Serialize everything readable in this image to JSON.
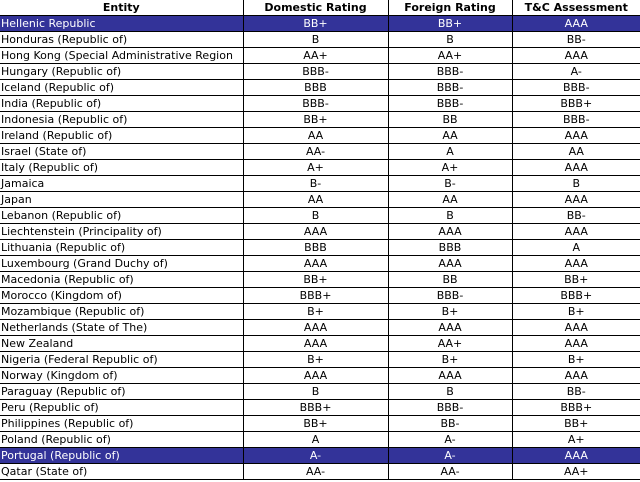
{
  "columns": {
    "entity": "Entity",
    "domestic": "Domestic Rating",
    "foreign": "Foreign Rating",
    "tc": "T&C Assessment"
  },
  "colors": {
    "selected_row_bg": "#333399",
    "selected_row_text": "#ffffff",
    "grid": "#000000"
  },
  "rows": [
    {
      "entity": "Hellenic Republic",
      "domestic": "BB+",
      "foreign": "BB+",
      "tc": "AAA",
      "selected": true
    },
    {
      "entity": "Honduras (Republic of)",
      "domestic": "B",
      "foreign": "B",
      "tc": "BB-"
    },
    {
      "entity": "Hong Kong (Special Administrative Region",
      "domestic": "AA+",
      "foreign": "AA+",
      "tc": "AAA"
    },
    {
      "entity": "Hungary (Republic of)",
      "domestic": "BBB-",
      "foreign": "BBB-",
      "tc": "A-"
    },
    {
      "entity": "Iceland (Republic of)",
      "domestic": "BBB",
      "foreign": "BBB-",
      "tc": "BBB-"
    },
    {
      "entity": "India (Republic of)",
      "domestic": "BBB-",
      "foreign": "BBB-",
      "tc": "BBB+"
    },
    {
      "entity": "Indonesia (Republic of)",
      "domestic": "BB+",
      "foreign": "BB",
      "tc": "BBB-"
    },
    {
      "entity": "Ireland (Republic of)",
      "domestic": "AA",
      "foreign": "AA",
      "tc": "AAA"
    },
    {
      "entity": "Israel (State of)",
      "domestic": "AA-",
      "foreign": "A",
      "tc": "AA"
    },
    {
      "entity": "Italy (Republic of)",
      "domestic": "A+",
      "foreign": "A+",
      "tc": "AAA"
    },
    {
      "entity": "Jamaica",
      "domestic": "B-",
      "foreign": "B-",
      "tc": "B"
    },
    {
      "entity": "Japan",
      "domestic": "AA",
      "foreign": "AA",
      "tc": "AAA"
    },
    {
      "entity": "Lebanon (Republic of)",
      "domestic": "B",
      "foreign": "B",
      "tc": "BB-"
    },
    {
      "entity": "Liechtenstein (Principality of)",
      "domestic": "AAA",
      "foreign": "AAA",
      "tc": "AAA"
    },
    {
      "entity": "Lithuania (Republic of)",
      "domestic": "BBB",
      "foreign": "BBB",
      "tc": "A"
    },
    {
      "entity": "Luxembourg (Grand Duchy of)",
      "domestic": "AAA",
      "foreign": "AAA",
      "tc": "AAA"
    },
    {
      "entity": "Macedonia (Republic of)",
      "domestic": "BB+",
      "foreign": "BB",
      "tc": "BB+"
    },
    {
      "entity": "Morocco (Kingdom of)",
      "domestic": "BBB+",
      "foreign": "BBB-",
      "tc": "BBB+"
    },
    {
      "entity": "Mozambique (Republic of)",
      "domestic": "B+",
      "foreign": "B+",
      "tc": "B+"
    },
    {
      "entity": "Netherlands (State of The)",
      "domestic": "AAA",
      "foreign": "AAA",
      "tc": "AAA"
    },
    {
      "entity": "New Zealand",
      "domestic": "AAA",
      "foreign": "AA+",
      "tc": "AAA"
    },
    {
      "entity": "Nigeria (Federal Republic of)",
      "domestic": "B+",
      "foreign": "B+",
      "tc": "B+"
    },
    {
      "entity": "Norway (Kingdom of)",
      "domestic": "AAA",
      "foreign": "AAA",
      "tc": "AAA"
    },
    {
      "entity": "Paraguay (Republic of)",
      "domestic": "B",
      "foreign": "B",
      "tc": "BB-"
    },
    {
      "entity": "Peru (Republic of)",
      "domestic": "BBB+",
      "foreign": "BBB-",
      "tc": "BBB+"
    },
    {
      "entity": "Philippines (Republic of)",
      "domestic": "BB+",
      "foreign": "BB-",
      "tc": "BB+"
    },
    {
      "entity": "Poland (Republic of)",
      "domestic": "A",
      "foreign": "A-",
      "tc": "A+"
    },
    {
      "entity": "Portugal (Republic of)",
      "domestic": "A-",
      "foreign": "A-",
      "tc": "AAA",
      "selected": true
    },
    {
      "entity": "Qatar (State of)",
      "domestic": "AA-",
      "foreign": "AA-",
      "tc": "AA+"
    }
  ]
}
